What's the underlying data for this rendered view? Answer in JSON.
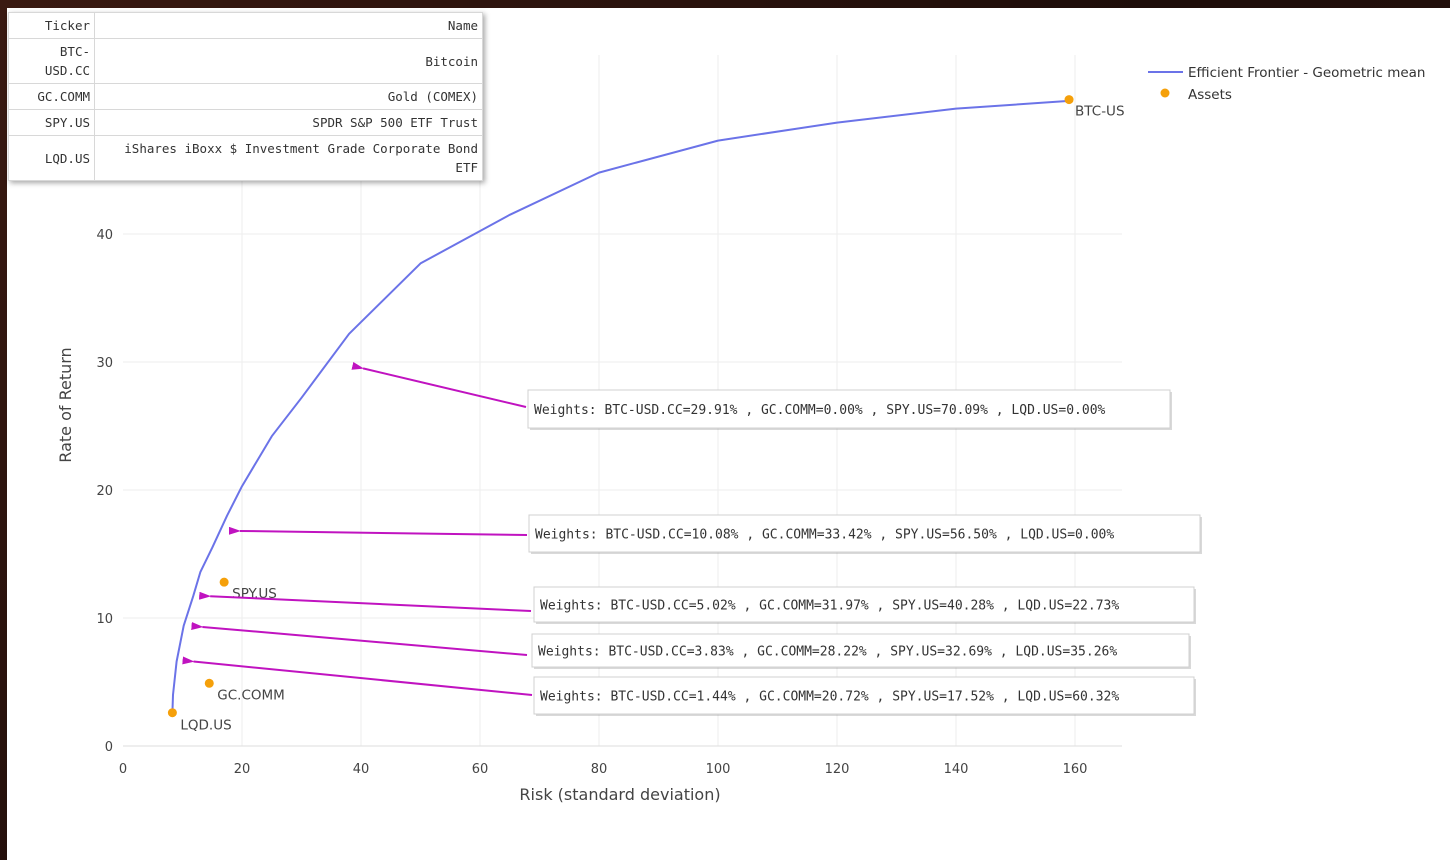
{
  "table": {
    "headers": [
      "Ticker",
      "Name"
    ],
    "rows": [
      {
        "ticker": "BTC-USD.CC",
        "name": "Bitcoin"
      },
      {
        "ticker": "GC.COMM",
        "name": "Gold (COMEX)"
      },
      {
        "ticker": "SPY.US",
        "name": "SPDR S&P 500 ETF Trust"
      },
      {
        "ticker": "LQD.US",
        "name": "iShares iBoxx $ Investment Grade Corporate Bond ETF"
      }
    ]
  },
  "chart_data": {
    "type": "line",
    "title": "",
    "xlabel": "Risk (standard deviation)",
    "ylabel": "Rate of Return",
    "xlim": [
      0,
      168
    ],
    "ylim": [
      0,
      50
    ],
    "x_ticks": [
      0,
      20,
      40,
      60,
      80,
      100,
      120,
      140,
      160
    ],
    "y_ticks": [
      0,
      10,
      20,
      30,
      40
    ],
    "grid": true,
    "legend_position": "top-right",
    "colors": {
      "frontier": "#6b73e8",
      "assets": "#f5a00a",
      "arrow": "#c013c0"
    },
    "series": [
      {
        "name": "Efficient Frontier - Geometric mean",
        "type": "line",
        "x": [
          8.3,
          8.4,
          9.0,
          10.2,
          11.8,
          13.0,
          15.0,
          17.5,
          20.0,
          25.0,
          30.0,
          38.0,
          50.0,
          65.0,
          80.0,
          100.0,
          120.0,
          140.0,
          159.0
        ],
        "y": [
          2.6,
          4.0,
          6.6,
          9.4,
          11.7,
          13.6,
          15.5,
          18.0,
          20.3,
          24.2,
          27.2,
          32.2,
          37.7,
          41.5,
          44.8,
          47.3,
          48.7,
          49.8,
          50.4
        ]
      },
      {
        "name": "Assets",
        "type": "scatter",
        "points": [
          {
            "label": "BTC-USD.CC",
            "x": 159.0,
            "y": 50.5
          },
          {
            "label": "SPY.US",
            "x": 17.0,
            "y": 12.8
          },
          {
            "label": "GC.COMM",
            "x": 14.5,
            "y": 4.9
          },
          {
            "label": "LQD.US",
            "x": 8.3,
            "y": 2.6
          }
        ]
      }
    ],
    "annotations": [
      {
        "text": "Weights: BTC-USD.CC=29.91% , GC.COMM=0.00% , SPY.US=70.09% , LQD.US=0.00%",
        "x": 38.0,
        "y": 29.5
      },
      {
        "text": "Weights: BTC-USD.CC=10.08% , GC.COMM=33.42% , SPY.US=56.50% , LQD.US=0.00%",
        "x": 17.3,
        "y": 16.8
      },
      {
        "text": "Weights: BTC-USD.CC=5.02% , GC.COMM=31.97% , SPY.US=40.28% , LQD.US=22.73%",
        "x": 12.3,
        "y": 11.7
      },
      {
        "text": "Weights: BTC-USD.CC=3.83% , GC.COMM=28.22% , SPY.US=32.69% , LQD.US=35.26%",
        "x": 11.0,
        "y": 9.3
      },
      {
        "text": "Weights: BTC-USD.CC=1.44% , GC.COMM=20.72% , SPY.US=17.52% , LQD.US=60.32%",
        "x": 9.5,
        "y": 6.6
      }
    ]
  }
}
